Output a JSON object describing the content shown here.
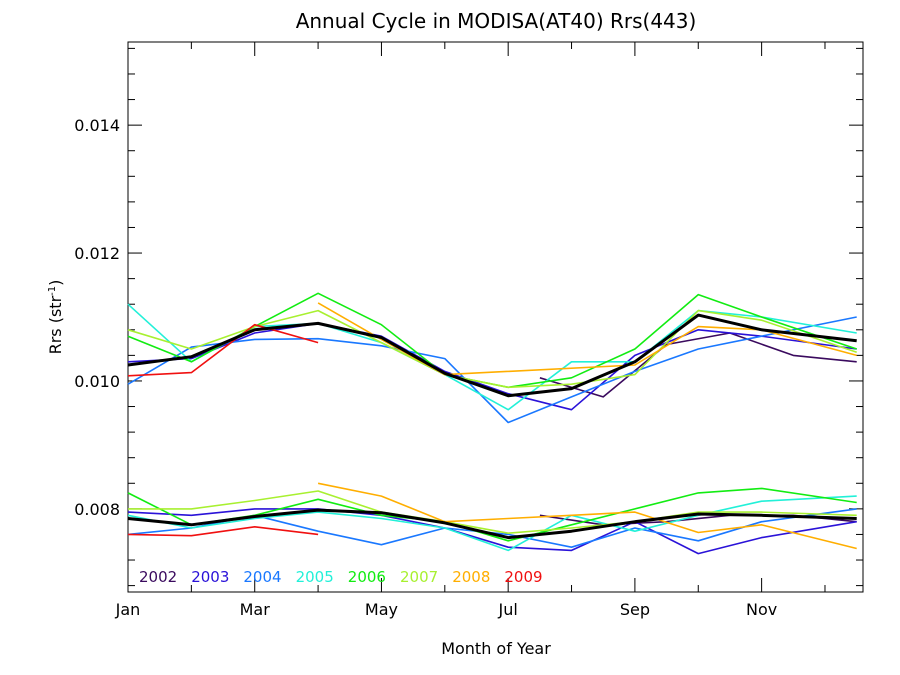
{
  "chart_data": {
    "type": "line",
    "title": "Annual Cycle in MODISA(AT40) Rrs(443)",
    "xlabel": "Month of Year",
    "ylabel": {
      "base": "Rrs (str",
      "sup": "-1",
      "end": ")"
    },
    "x_ticks": [
      {
        "label": "Jan",
        "x": 0
      },
      {
        "label": "Mar",
        "x": 2
      },
      {
        "label": "May",
        "x": 4
      },
      {
        "label": "Jul",
        "x": 6
      },
      {
        "label": "Sep",
        "x": 8
      },
      {
        "label": "Nov",
        "x": 10
      }
    ],
    "xlim": [
      0,
      11.6
    ],
    "ylim": [
      0.0067,
      0.0153
    ],
    "y_ticks": [
      {
        "label": "0.008",
        "value": 0.008
      },
      {
        "label": "0.010",
        "value": 0.01
      },
      {
        "label": "0.012",
        "value": 0.012
      },
      {
        "label": "0.014",
        "value": 0.014
      }
    ],
    "legend_placement": "bottom-left",
    "series": [
      {
        "name": "2002",
        "color": "#3a0a5e",
        "group": "upper",
        "points": [
          [
            6.5,
            0.01005
          ],
          [
            7.5,
            0.00975
          ],
          [
            8.5,
            0.01057
          ],
          [
            9.5,
            0.01075
          ],
          [
            10.5,
            0.0104
          ],
          [
            11.5,
            0.0103
          ]
        ]
      },
      {
        "name": "2002",
        "color": "#3a0a5e",
        "group": "lower",
        "points": [
          [
            6.5,
            0.0079
          ],
          [
            7.5,
            0.00775
          ],
          [
            8.5,
            0.0078
          ],
          [
            9.5,
            0.0079
          ],
          [
            10.5,
            0.0079
          ],
          [
            11.5,
            0.0078
          ]
        ]
      },
      {
        "name": "2003",
        "color": "#2a12d8",
        "group": "upper",
        "points": [
          [
            0,
            0.0103
          ],
          [
            1,
            0.01035
          ],
          [
            2,
            0.01075
          ],
          [
            3,
            0.0109
          ],
          [
            4,
            0.0107
          ],
          [
            5,
            0.01015
          ],
          [
            6,
            0.0098
          ],
          [
            7,
            0.00955
          ],
          [
            8,
            0.0104
          ],
          [
            9,
            0.0108
          ],
          [
            10,
            0.0107
          ],
          [
            11.5,
            0.0105
          ]
        ]
      },
      {
        "name": "2003",
        "color": "#2a12d8",
        "group": "lower",
        "points": [
          [
            0,
            0.00795
          ],
          [
            1,
            0.0079
          ],
          [
            2,
            0.008
          ],
          [
            3,
            0.008
          ],
          [
            4,
            0.0079
          ],
          [
            5,
            0.0077
          ],
          [
            6,
            0.0074
          ],
          [
            7,
            0.00735
          ],
          [
            8,
            0.0078
          ],
          [
            9,
            0.0073
          ],
          [
            10,
            0.00755
          ],
          [
            11.5,
            0.0078
          ]
        ]
      },
      {
        "name": "2004",
        "color": "#1a78ff",
        "group": "upper",
        "points": [
          [
            0,
            0.00995
          ],
          [
            1,
            0.01053
          ],
          [
            2,
            0.01065
          ],
          [
            3,
            0.01066
          ],
          [
            4,
            0.01055
          ],
          [
            5,
            0.01035
          ],
          [
            6,
            0.00935
          ],
          [
            7,
            0.00975
          ],
          [
            8,
            0.01015
          ],
          [
            9,
            0.0105
          ],
          [
            10,
            0.0107
          ],
          [
            11.5,
            0.011
          ]
        ]
      },
      {
        "name": "2004",
        "color": "#1a78ff",
        "group": "lower",
        "points": [
          [
            0,
            0.0076
          ],
          [
            1,
            0.0077
          ],
          [
            2,
            0.0079
          ],
          [
            3,
            0.00765
          ],
          [
            4,
            0.00744
          ],
          [
            5,
            0.0077
          ],
          [
            6,
            0.0076
          ],
          [
            7,
            0.0074
          ],
          [
            8,
            0.0077
          ],
          [
            9,
            0.0075
          ],
          [
            10,
            0.0078
          ],
          [
            11.5,
            0.008
          ]
        ]
      },
      {
        "name": "2005",
        "color": "#22f0d8",
        "group": "upper",
        "points": [
          [
            0,
            0.0112
          ],
          [
            1,
            0.0103
          ],
          [
            2,
            0.01085
          ],
          [
            3,
            0.0109
          ],
          [
            4,
            0.0106
          ],
          [
            5,
            0.0101
          ],
          [
            6,
            0.00955
          ],
          [
            7,
            0.0103
          ],
          [
            8,
            0.0103
          ],
          [
            9,
            0.0111
          ],
          [
            10,
            0.011
          ],
          [
            11.5,
            0.01075
          ]
        ]
      },
      {
        "name": "2005",
        "color": "#22f0d8",
        "group": "lower",
        "points": [
          [
            0,
            0.0079
          ],
          [
            1,
            0.0077
          ],
          [
            2,
            0.00785
          ],
          [
            3,
            0.00795
          ],
          [
            4,
            0.00785
          ],
          [
            5,
            0.0077
          ],
          [
            6,
            0.00735
          ],
          [
            7,
            0.0079
          ],
          [
            8,
            0.00765
          ],
          [
            9,
            0.0079
          ],
          [
            10,
            0.00812
          ],
          [
            11.5,
            0.0082
          ]
        ]
      },
      {
        "name": "2006",
        "color": "#12ec12",
        "group": "upper",
        "points": [
          [
            0,
            0.0107
          ],
          [
            1,
            0.0103
          ],
          [
            2,
            0.01085
          ],
          [
            3,
            0.01137
          ],
          [
            4,
            0.01088
          ],
          [
            5,
            0.0101
          ],
          [
            6,
            0.0099
          ],
          [
            7,
            0.01005
          ],
          [
            8,
            0.0105
          ],
          [
            9,
            0.01135
          ],
          [
            10,
            0.011
          ],
          [
            11.5,
            0.0105
          ]
        ]
      },
      {
        "name": "2006",
        "color": "#12ec12",
        "group": "lower",
        "points": [
          [
            0,
            0.00825
          ],
          [
            1,
            0.00775
          ],
          [
            2,
            0.0079
          ],
          [
            3,
            0.00815
          ],
          [
            4,
            0.0079
          ],
          [
            5,
            0.0078
          ],
          [
            6,
            0.0075
          ],
          [
            7,
            0.00775
          ],
          [
            8,
            0.008
          ],
          [
            9,
            0.00825
          ],
          [
            10,
            0.00832
          ],
          [
            11.5,
            0.0081
          ]
        ]
      },
      {
        "name": "2007",
        "color": "#a8f030",
        "group": "upper",
        "points": [
          [
            0,
            0.0108
          ],
          [
            1,
            0.0105
          ],
          [
            2,
            0.01085
          ],
          [
            3,
            0.0111
          ],
          [
            4,
            0.0106
          ],
          [
            5,
            0.0101
          ],
          [
            6,
            0.0099
          ],
          [
            7,
            0.00995
          ],
          [
            8,
            0.0101
          ],
          [
            9,
            0.0111
          ],
          [
            10,
            0.01095
          ],
          [
            11.5,
            0.01045
          ]
        ]
      },
      {
        "name": "2007",
        "color": "#a8f030",
        "group": "lower",
        "points": [
          [
            0,
            0.008
          ],
          [
            1,
            0.008
          ],
          [
            2,
            0.00813
          ],
          [
            3,
            0.00828
          ],
          [
            4,
            0.00795
          ],
          [
            5,
            0.0078
          ],
          [
            6,
            0.00762
          ],
          [
            7,
            0.0077
          ],
          [
            8,
            0.0078
          ],
          [
            9,
            0.00795
          ],
          [
            10,
            0.00795
          ],
          [
            11.5,
            0.0079
          ]
        ]
      },
      {
        "name": "2008",
        "color": "#ffae00",
        "group": "upper",
        "points": [
          [
            3,
            0.01122
          ],
          [
            4,
            0.01065
          ],
          [
            5,
            0.0101
          ],
          [
            8,
            0.01025
          ],
          [
            9,
            0.01085
          ],
          [
            10,
            0.0108
          ],
          [
            11.5,
            0.0104
          ]
        ]
      },
      {
        "name": "2008",
        "color": "#ffae00",
        "group": "lower",
        "points": [
          [
            3,
            0.0084
          ],
          [
            4,
            0.0082
          ],
          [
            5,
            0.0078
          ],
          [
            6,
            0.00785
          ],
          [
            7,
            0.0079
          ],
          [
            8,
            0.00795
          ],
          [
            9,
            0.00763
          ],
          [
            10,
            0.00775
          ],
          [
            11.5,
            0.00738
          ]
        ]
      },
      {
        "name": "2009",
        "color": "#f01010",
        "group": "upper",
        "points": [
          [
            0,
            0.01008
          ],
          [
            1,
            0.01013
          ],
          [
            2,
            0.01088
          ],
          [
            3,
            0.0106
          ]
        ]
      },
      {
        "name": "2009",
        "color": "#f01010",
        "group": "lower",
        "points": [
          [
            0,
            0.0076
          ],
          [
            1,
            0.00758
          ],
          [
            2,
            0.00772
          ],
          [
            3,
            0.0076
          ]
        ]
      },
      {
        "name": "",
        "color": "#000000",
        "group": "upper",
        "thick": true,
        "points": [
          [
            0,
            0.01025
          ],
          [
            1,
            0.01038
          ],
          [
            2,
            0.0108
          ],
          [
            3,
            0.0109
          ],
          [
            4,
            0.01068
          ],
          [
            5,
            0.01012
          ],
          [
            6,
            0.00977
          ],
          [
            7,
            0.00988
          ],
          [
            8,
            0.0103
          ],
          [
            9,
            0.01103
          ],
          [
            10,
            0.0108
          ],
          [
            11.5,
            0.01063
          ]
        ]
      },
      {
        "name": "",
        "color": "#000000",
        "group": "lower",
        "thick": true,
        "points": [
          [
            0,
            0.00785
          ],
          [
            1,
            0.00775
          ],
          [
            2,
            0.00788
          ],
          [
            3,
            0.00798
          ],
          [
            4,
            0.00794
          ],
          [
            5,
            0.00778
          ],
          [
            6,
            0.00755
          ],
          [
            7,
            0.00765
          ],
          [
            8,
            0.0078
          ],
          [
            9,
            0.00792
          ],
          [
            10,
            0.0079
          ],
          [
            11.5,
            0.00785
          ]
        ]
      }
    ],
    "legend": [
      {
        "label": "2002",
        "color": "#3a0a5e"
      },
      {
        "label": "2003",
        "color": "#2a12d8"
      },
      {
        "label": "2004",
        "color": "#1a78ff"
      },
      {
        "label": "2005",
        "color": "#22f0d8"
      },
      {
        "label": "2006",
        "color": "#12ec12"
      },
      {
        "label": "2007",
        "color": "#a8f030"
      },
      {
        "label": "2008",
        "color": "#ffae00"
      },
      {
        "label": "2009",
        "color": "#f01010"
      }
    ]
  }
}
